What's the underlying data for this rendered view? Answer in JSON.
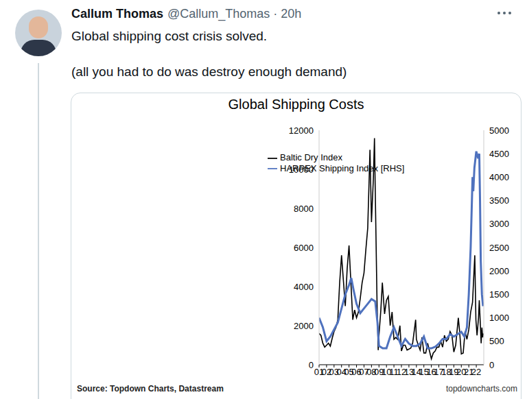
{
  "tweet": {
    "name": "Callum Thomas",
    "handle_line": "@Callum_Thomas · 20h",
    "text": [
      "Global shipping cost crisis solved.",
      "(all you had to do was destroy enough demand)"
    ]
  },
  "chart_data": {
    "type": "line",
    "title": "Global Shipping Costs",
    "source": "Source: Topdown Charts, Datastream",
    "credit": "topdowncharts.com",
    "xlim": [
      2001,
      2023
    ],
    "xticks": [
      {
        "value": 2001,
        "label": "01"
      },
      {
        "value": 2002,
        "label": "02"
      },
      {
        "value": 2003,
        "label": "03"
      },
      {
        "value": 2004,
        "label": "04"
      },
      {
        "value": 2005,
        "label": "05"
      },
      {
        "value": 2006,
        "label": "06"
      },
      {
        "value": 2007,
        "label": "07"
      },
      {
        "value": 2008,
        "label": "08"
      },
      {
        "value": 2009,
        "label": "09"
      },
      {
        "value": 2010,
        "label": "10"
      },
      {
        "value": 2011,
        "label": "11"
      },
      {
        "value": 2012,
        "label": "12"
      },
      {
        "value": 2013,
        "label": "13"
      },
      {
        "value": 2014,
        "label": "14"
      },
      {
        "value": 2015,
        "label": "15"
      },
      {
        "value": 2016,
        "label": "16"
      },
      {
        "value": 2017,
        "label": "17"
      },
      {
        "value": 2018,
        "label": "18"
      },
      {
        "value": 2019,
        "label": "19"
      },
      {
        "value": 2020,
        "label": "20"
      },
      {
        "value": 2021,
        "label": "21"
      },
      {
        "value": 2022,
        "label": "22"
      }
    ],
    "ylim": [
      0,
      12000
    ],
    "yticks": [
      0,
      2000,
      4000,
      6000,
      8000,
      10000,
      12000
    ],
    "y2lim": [
      0,
      5000
    ],
    "y2ticks": [
      0,
      500,
      1000,
      1500,
      2000,
      2500,
      3000,
      3500,
      4000,
      4500,
      5000
    ],
    "grid": false,
    "legend": "top",
    "series": [
      {
        "name": "Baltic Dry Index",
        "color": "#000000",
        "axis": "y",
        "x": [
          2001,
          2001.25,
          2001.5,
          2001.75,
          2002,
          2002.25,
          2002.5,
          2002.75,
          2003,
          2003.25,
          2003.5,
          2003.75,
          2004,
          2004.25,
          2004.5,
          2004.75,
          2005,
          2005.25,
          2005.5,
          2005.75,
          2006,
          2006.25,
          2006.5,
          2006.75,
          2007,
          2007.25,
          2007.5,
          2007.8,
          2008,
          2008.25,
          2008.4,
          2008.5,
          2008.75,
          2008.9,
          2009,
          2009.25,
          2009.45,
          2009.75,
          2010,
          2010.25,
          2010.5,
          2010.75,
          2011,
          2011.25,
          2011.5,
          2011.8,
          2012,
          2012.25,
          2012.5,
          2012.75,
          2013,
          2013.25,
          2013.5,
          2013.9,
          2014,
          2014.25,
          2014.5,
          2014.75,
          2015,
          2015.25,
          2015.5,
          2015.75,
          2016,
          2016.25,
          2016.5,
          2016.75,
          2017,
          2017.25,
          2017.5,
          2017.75,
          2018,
          2018.25,
          2018.5,
          2018.75,
          2019,
          2019.25,
          2019.6,
          2019.75,
          2020,
          2020.25,
          2020.5,
          2020.75,
          2021,
          2021.25,
          2021.5,
          2021.8,
          2021.95,
          2022.1,
          2022.3,
          2022.4,
          2022.55,
          2022.65,
          2022.75,
          2022.85,
          2022.92
        ],
        "values": [
          1600,
          1500,
          1100,
          900,
          1000,
          1100,
          950,
          1350,
          1700,
          1900,
          2300,
          4200,
          5600,
          4300,
          3000,
          4900,
          6100,
          4200,
          2300,
          2800,
          2400,
          2700,
          3400,
          4200,
          4700,
          5900,
          7000,
          11000,
          7300,
          9500,
          11600,
          9000,
          3000,
          750,
          1500,
          2800,
          4200,
          2600,
          3300,
          3500,
          2000,
          2700,
          1300,
          1400,
          1300,
          2000,
          700,
          1000,
          1000,
          750,
          800,
          850,
          1100,
          2300,
          1300,
          1000,
          750,
          1400,
          600,
          600,
          1100,
          700,
          300,
          600,
          700,
          900,
          900,
          1200,
          900,
          1500,
          1200,
          1300,
          1700,
          1500,
          650,
          1000,
          2400,
          1800,
          550,
          600,
          1700,
          1300,
          1800,
          2700,
          3200,
          5600,
          2300,
          1500,
          2400,
          3300,
          2000,
          1100,
          1900,
          1400,
          1600
        ]
      },
      {
        "name": "HARPEX Shipping Index [RHS]",
        "color": "#4f72be",
        "axis": "y2",
        "x": [
          2001,
          2001.5,
          2002,
          2002.5,
          2003,
          2003.5,
          2004,
          2004.5,
          2005,
          2005.3,
          2005.6,
          2006,
          2006.5,
          2007,
          2007.5,
          2008,
          2008.5,
          2008.8,
          2009,
          2009.5,
          2010,
          2010.5,
          2011,
          2011.5,
          2012,
          2012.5,
          2013,
          2013.5,
          2014,
          2014.5,
          2015,
          2015.5,
          2016,
          2016.5,
          2017,
          2017.5,
          2018,
          2018.5,
          2019,
          2019.5,
          2020,
          2020.4,
          2020.75,
          2021,
          2021.25,
          2021.5,
          2021.6,
          2021.75,
          2022,
          2022.25,
          2022.4,
          2022.5,
          2022.6,
          2022.75,
          2022.9
        ],
        "values": [
          1000,
          800,
          500,
          600,
          750,
          900,
          1200,
          1500,
          1700,
          1850,
          1600,
          1300,
          1100,
          1200,
          1300,
          1400,
          1350,
          900,
          400,
          350,
          350,
          600,
          800,
          600,
          400,
          550,
          450,
          400,
          400,
          450,
          600,
          350,
          350,
          380,
          450,
          550,
          550,
          650,
          600,
          650,
          700,
          600,
          800,
          1500,
          2500,
          4000,
          3700,
          4200,
          4550,
          4400,
          4500,
          3500,
          2200,
          1500,
          1250
        ]
      }
    ]
  }
}
